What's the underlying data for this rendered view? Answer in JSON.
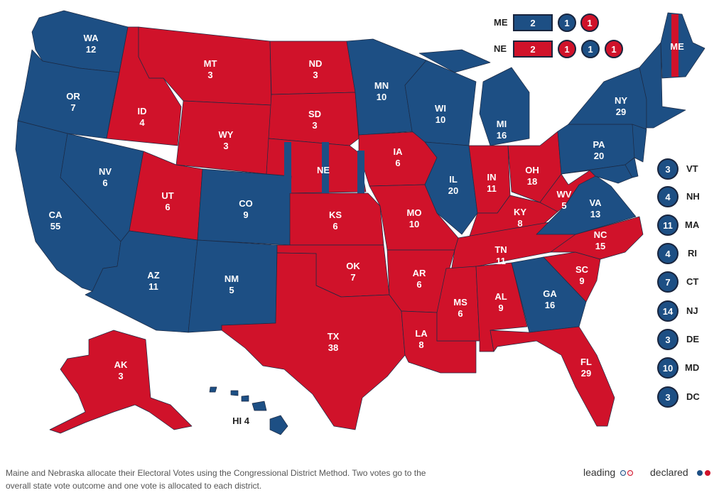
{
  "colors": {
    "blue": "#1d4f84",
    "red": "#d0122a",
    "border": "#1c2a44"
  },
  "states": [
    {
      "abbr": "WA",
      "votes": "12",
      "party": "blue"
    },
    {
      "abbr": "OR",
      "votes": "7",
      "party": "blue"
    },
    {
      "abbr": "CA",
      "votes": "55",
      "party": "blue"
    },
    {
      "abbr": "NV",
      "votes": "6",
      "party": "blue"
    },
    {
      "abbr": "ID",
      "votes": "4",
      "party": "red"
    },
    {
      "abbr": "MT",
      "votes": "3",
      "party": "red"
    },
    {
      "abbr": "WY",
      "votes": "3",
      "party": "red"
    },
    {
      "abbr": "UT",
      "votes": "6",
      "party": "red"
    },
    {
      "abbr": "AZ",
      "votes": "11",
      "party": "blue"
    },
    {
      "abbr": "CO",
      "votes": "9",
      "party": "blue"
    },
    {
      "abbr": "NM",
      "votes": "5",
      "party": "blue"
    },
    {
      "abbr": "ND",
      "votes": "3",
      "party": "red"
    },
    {
      "abbr": "SD",
      "votes": "3",
      "party": "red"
    },
    {
      "abbr": "NE",
      "votes": "",
      "party": "red"
    },
    {
      "abbr": "KS",
      "votes": "6",
      "party": "red"
    },
    {
      "abbr": "OK",
      "votes": "7",
      "party": "red"
    },
    {
      "abbr": "TX",
      "votes": "38",
      "party": "red"
    },
    {
      "abbr": "MN",
      "votes": "10",
      "party": "blue"
    },
    {
      "abbr": "IA",
      "votes": "6",
      "party": "red"
    },
    {
      "abbr": "MO",
      "votes": "10",
      "party": "red"
    },
    {
      "abbr": "AR",
      "votes": "6",
      "party": "red"
    },
    {
      "abbr": "LA",
      "votes": "8",
      "party": "red"
    },
    {
      "abbr": "WI",
      "votes": "10",
      "party": "blue"
    },
    {
      "abbr": "IL",
      "votes": "20",
      "party": "blue"
    },
    {
      "abbr": "MI",
      "votes": "16",
      "party": "blue"
    },
    {
      "abbr": "IN",
      "votes": "11",
      "party": "red"
    },
    {
      "abbr": "OH",
      "votes": "18",
      "party": "red"
    },
    {
      "abbr": "KY",
      "votes": "8",
      "party": "red"
    },
    {
      "abbr": "TN",
      "votes": "11",
      "party": "red"
    },
    {
      "abbr": "MS",
      "votes": "6",
      "party": "red"
    },
    {
      "abbr": "AL",
      "votes": "9",
      "party": "red"
    },
    {
      "abbr": "GA",
      "votes": "16",
      "party": "blue"
    },
    {
      "abbr": "FL",
      "votes": "29",
      "party": "red"
    },
    {
      "abbr": "SC",
      "votes": "9",
      "party": "red"
    },
    {
      "abbr": "NC",
      "votes": "15",
      "party": "red"
    },
    {
      "abbr": "VA",
      "votes": "13",
      "party": "blue"
    },
    {
      "abbr": "WV",
      "votes": "5",
      "party": "red"
    },
    {
      "abbr": "PA",
      "votes": "20",
      "party": "blue"
    },
    {
      "abbr": "NY",
      "votes": "29",
      "party": "blue"
    },
    {
      "abbr": "ME",
      "votes": "",
      "party": "blue"
    },
    {
      "abbr": "AK",
      "votes": "3",
      "party": "red"
    },
    {
      "abbr": "HI",
      "votes": "4",
      "party": "blue"
    }
  ],
  "small_states": [
    {
      "abbr": "VT",
      "votes": "3",
      "party": "blue"
    },
    {
      "abbr": "NH",
      "votes": "4",
      "party": "blue"
    },
    {
      "abbr": "MA",
      "votes": "11",
      "party": "blue"
    },
    {
      "abbr": "RI",
      "votes": "4",
      "party": "blue"
    },
    {
      "abbr": "CT",
      "votes": "7",
      "party": "blue"
    },
    {
      "abbr": "NJ",
      "votes": "14",
      "party": "blue"
    },
    {
      "abbr": "DE",
      "votes": "3",
      "party": "blue"
    },
    {
      "abbr": "MD",
      "votes": "10",
      "party": "blue"
    },
    {
      "abbr": "DC",
      "votes": "3",
      "party": "blue"
    }
  ],
  "split_states": [
    {
      "abbr": "ME",
      "statewide": {
        "votes": "2",
        "party": "blue"
      },
      "districts": [
        {
          "votes": "1",
          "party": "blue"
        },
        {
          "votes": "1",
          "party": "red"
        }
      ]
    },
    {
      "abbr": "NE",
      "statewide": {
        "votes": "2",
        "party": "red"
      },
      "districts": [
        {
          "votes": "1",
          "party": "red"
        },
        {
          "votes": "1",
          "party": "blue"
        },
        {
          "votes": "1",
          "party": "red"
        }
      ]
    }
  ],
  "hawaii_label": "HI 4",
  "footnote": "Maine and Nebraska allocate their Electoral Votes using the Congressional District Method. Two votes go to the overall state vote outcome and one vote is allocated to each district.",
  "legend": {
    "leading": "leading",
    "declared": "declared"
  }
}
